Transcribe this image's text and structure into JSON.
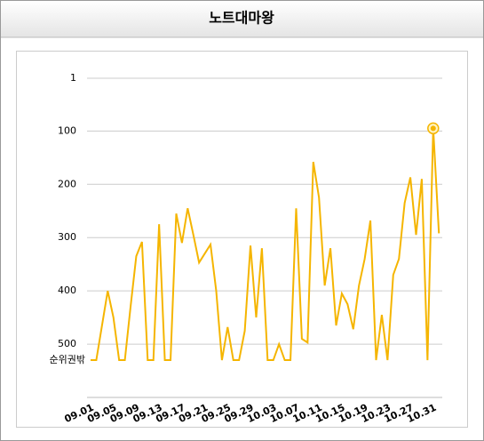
{
  "chart_data": {
    "type": "line",
    "title": "노트대마왕",
    "categories": [
      "09.01",
      null,
      null,
      null,
      "09.05",
      null,
      null,
      null,
      "09.09",
      null,
      null,
      null,
      "09.13",
      null,
      null,
      null,
      "09.17",
      null,
      null,
      null,
      "09.21",
      null,
      null,
      null,
      "09.25",
      null,
      null,
      null,
      "09.29",
      null,
      null,
      null,
      "10.03",
      null,
      null,
      null,
      "10.07",
      null,
      null,
      null,
      "10.11",
      null,
      null,
      null,
      "10.15",
      null,
      null,
      null,
      "10.19",
      null,
      null,
      null,
      "10.23",
      null,
      null,
      null,
      "10.27",
      null,
      null,
      null,
      "10.31",
      null
    ],
    "series": [
      {
        "name": null,
        "color": "#f5b500",
        "values": [
          530,
          530,
          465,
          400,
          450,
          530,
          530,
          430,
          335,
          308,
          530,
          530,
          275,
          530,
          530,
          255,
          310,
          245,
          295,
          347,
          330,
          313,
          400,
          530,
          468,
          530,
          530,
          475,
          315,
          450,
          320,
          530,
          530,
          500,
          530,
          530,
          245,
          490,
          497,
          158,
          225,
          390,
          320,
          465,
          405,
          425,
          472,
          390,
          340,
          268,
          530,
          445,
          530,
          370,
          340,
          235,
          187,
          295,
          190,
          530,
          95,
          292
        ]
      }
    ],
    "ylim": [
      1,
      600
    ],
    "y_inverted": true,
    "yticks": [
      1,
      100,
      200,
      300,
      400,
      500,
      {
        "value": 530,
        "label": "순위권밖"
      }
    ],
    "grid": true,
    "highlight_best": true
  }
}
